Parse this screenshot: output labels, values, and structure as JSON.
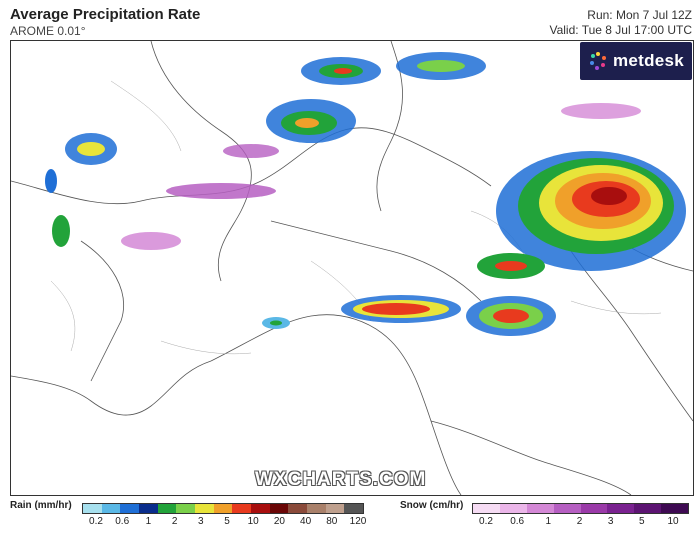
{
  "header": {
    "title": "Average Precipitation Rate",
    "model": "AROME 0.01°",
    "run": "Run: Mon 7 Jul 12Z",
    "valid": "Valid: Tue 8 Jul 17:00 UTC"
  },
  "brand": {
    "name": "metdesk",
    "color": "#1d1f4d"
  },
  "watermark": "WXCHARTS.COM",
  "legend": {
    "rain": {
      "label": "Rain (mm/hr)",
      "ticks": [
        "0.2",
        "0.6",
        "1",
        "2",
        "3",
        "5",
        "10",
        "20",
        "40",
        "80",
        "120"
      ],
      "colors": [
        "#a7e0ee",
        "#5ab8e6",
        "#1f6fd6",
        "#0a2d8c",
        "#22a33a",
        "#7ad04a",
        "#e8e43a",
        "#f0a02a",
        "#e83a1e",
        "#a80e0e",
        "#6a0606",
        "#8a4a3a",
        "#a9806a",
        "#bfa08e",
        "#555555"
      ]
    },
    "snow": {
      "label": "Snow (cm/hr)",
      "ticks": [
        "0.2",
        "0.6",
        "1",
        "2",
        "3",
        "5",
        "10"
      ],
      "colors": [
        "#f6dcf4",
        "#ebb6e9",
        "#d488d6",
        "#b65fc2",
        "#9a3aa8",
        "#7a2290",
        "#5c1472",
        "#3e0a52"
      ]
    }
  }
}
